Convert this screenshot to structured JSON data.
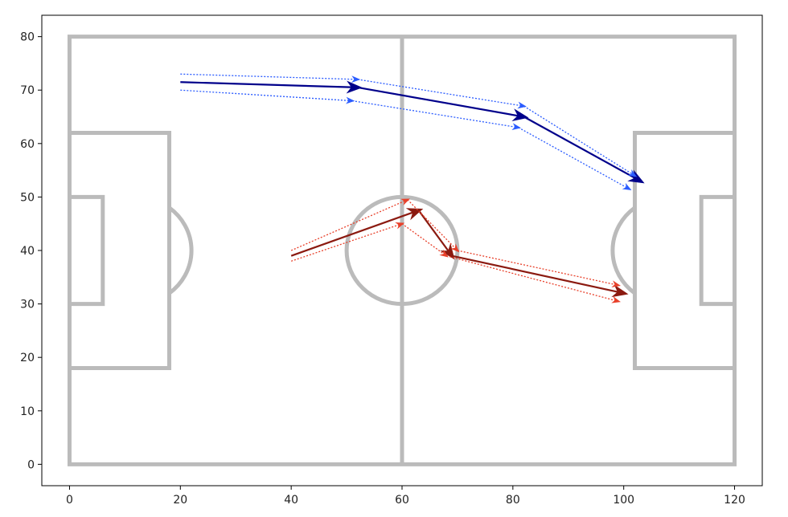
{
  "colors": {
    "pitch_lines": "#bbbbbb",
    "blue_main": "#00008b",
    "blue_dotted": "#2b5cff",
    "red_main": "#8b1a10",
    "red_dotted": "#e8402a",
    "axes": "#000000"
  },
  "chart_data": {
    "type": "line",
    "title": "",
    "xlabel": "",
    "ylabel": "",
    "xlim": [
      -5,
      125
    ],
    "ylim": [
      -4,
      84
    ],
    "x_ticks": [
      0,
      20,
      40,
      60,
      80,
      100,
      120
    ],
    "y_ticks": [
      0,
      10,
      20,
      30,
      40,
      50,
      60,
      70,
      80
    ],
    "x_tick_labels": [
      "0",
      "20",
      "40",
      "60",
      "80",
      "100",
      "120"
    ],
    "y_tick_labels": [
      "0",
      "10",
      "20",
      "30",
      "40",
      "50",
      "60",
      "70",
      "80"
    ],
    "grid": false,
    "pitch": {
      "length": 120,
      "width": 80,
      "penalty_box_depth": 18,
      "penalty_box_y": [
        18,
        62
      ],
      "six_yard_depth": 6,
      "six_yard_y": [
        30,
        50
      ],
      "center_circle_radius": 10,
      "penalty_spot_distance": 12
    },
    "series": [
      {
        "color": "blue",
        "style": "solid",
        "x": [
          20,
          52,
          82,
          103
        ],
        "y": [
          71.5,
          70.5,
          65,
          53
        ]
      },
      {
        "color": "blue",
        "style": "dotted",
        "x": [
          20,
          52,
          82,
          102
        ],
        "y": [
          73,
          72,
          67,
          54
        ]
      },
      {
        "color": "blue",
        "style": "dotted",
        "x": [
          20,
          51,
          81,
          101
        ],
        "y": [
          70,
          68,
          63,
          51.5
        ]
      },
      {
        "color": "red",
        "style": "solid",
        "x": [
          40,
          63,
          69,
          100
        ],
        "y": [
          39,
          47.5,
          39,
          32
        ]
      },
      {
        "color": "red",
        "style": "dotted",
        "x": [
          40,
          61,
          70,
          99
        ],
        "y": [
          40,
          49.5,
          40,
          33.5
        ]
      },
      {
        "color": "red",
        "style": "dotted",
        "x": [
          40,
          60,
          68,
          99
        ],
        "y": [
          38,
          45,
          39,
          30.5
        ]
      }
    ]
  }
}
